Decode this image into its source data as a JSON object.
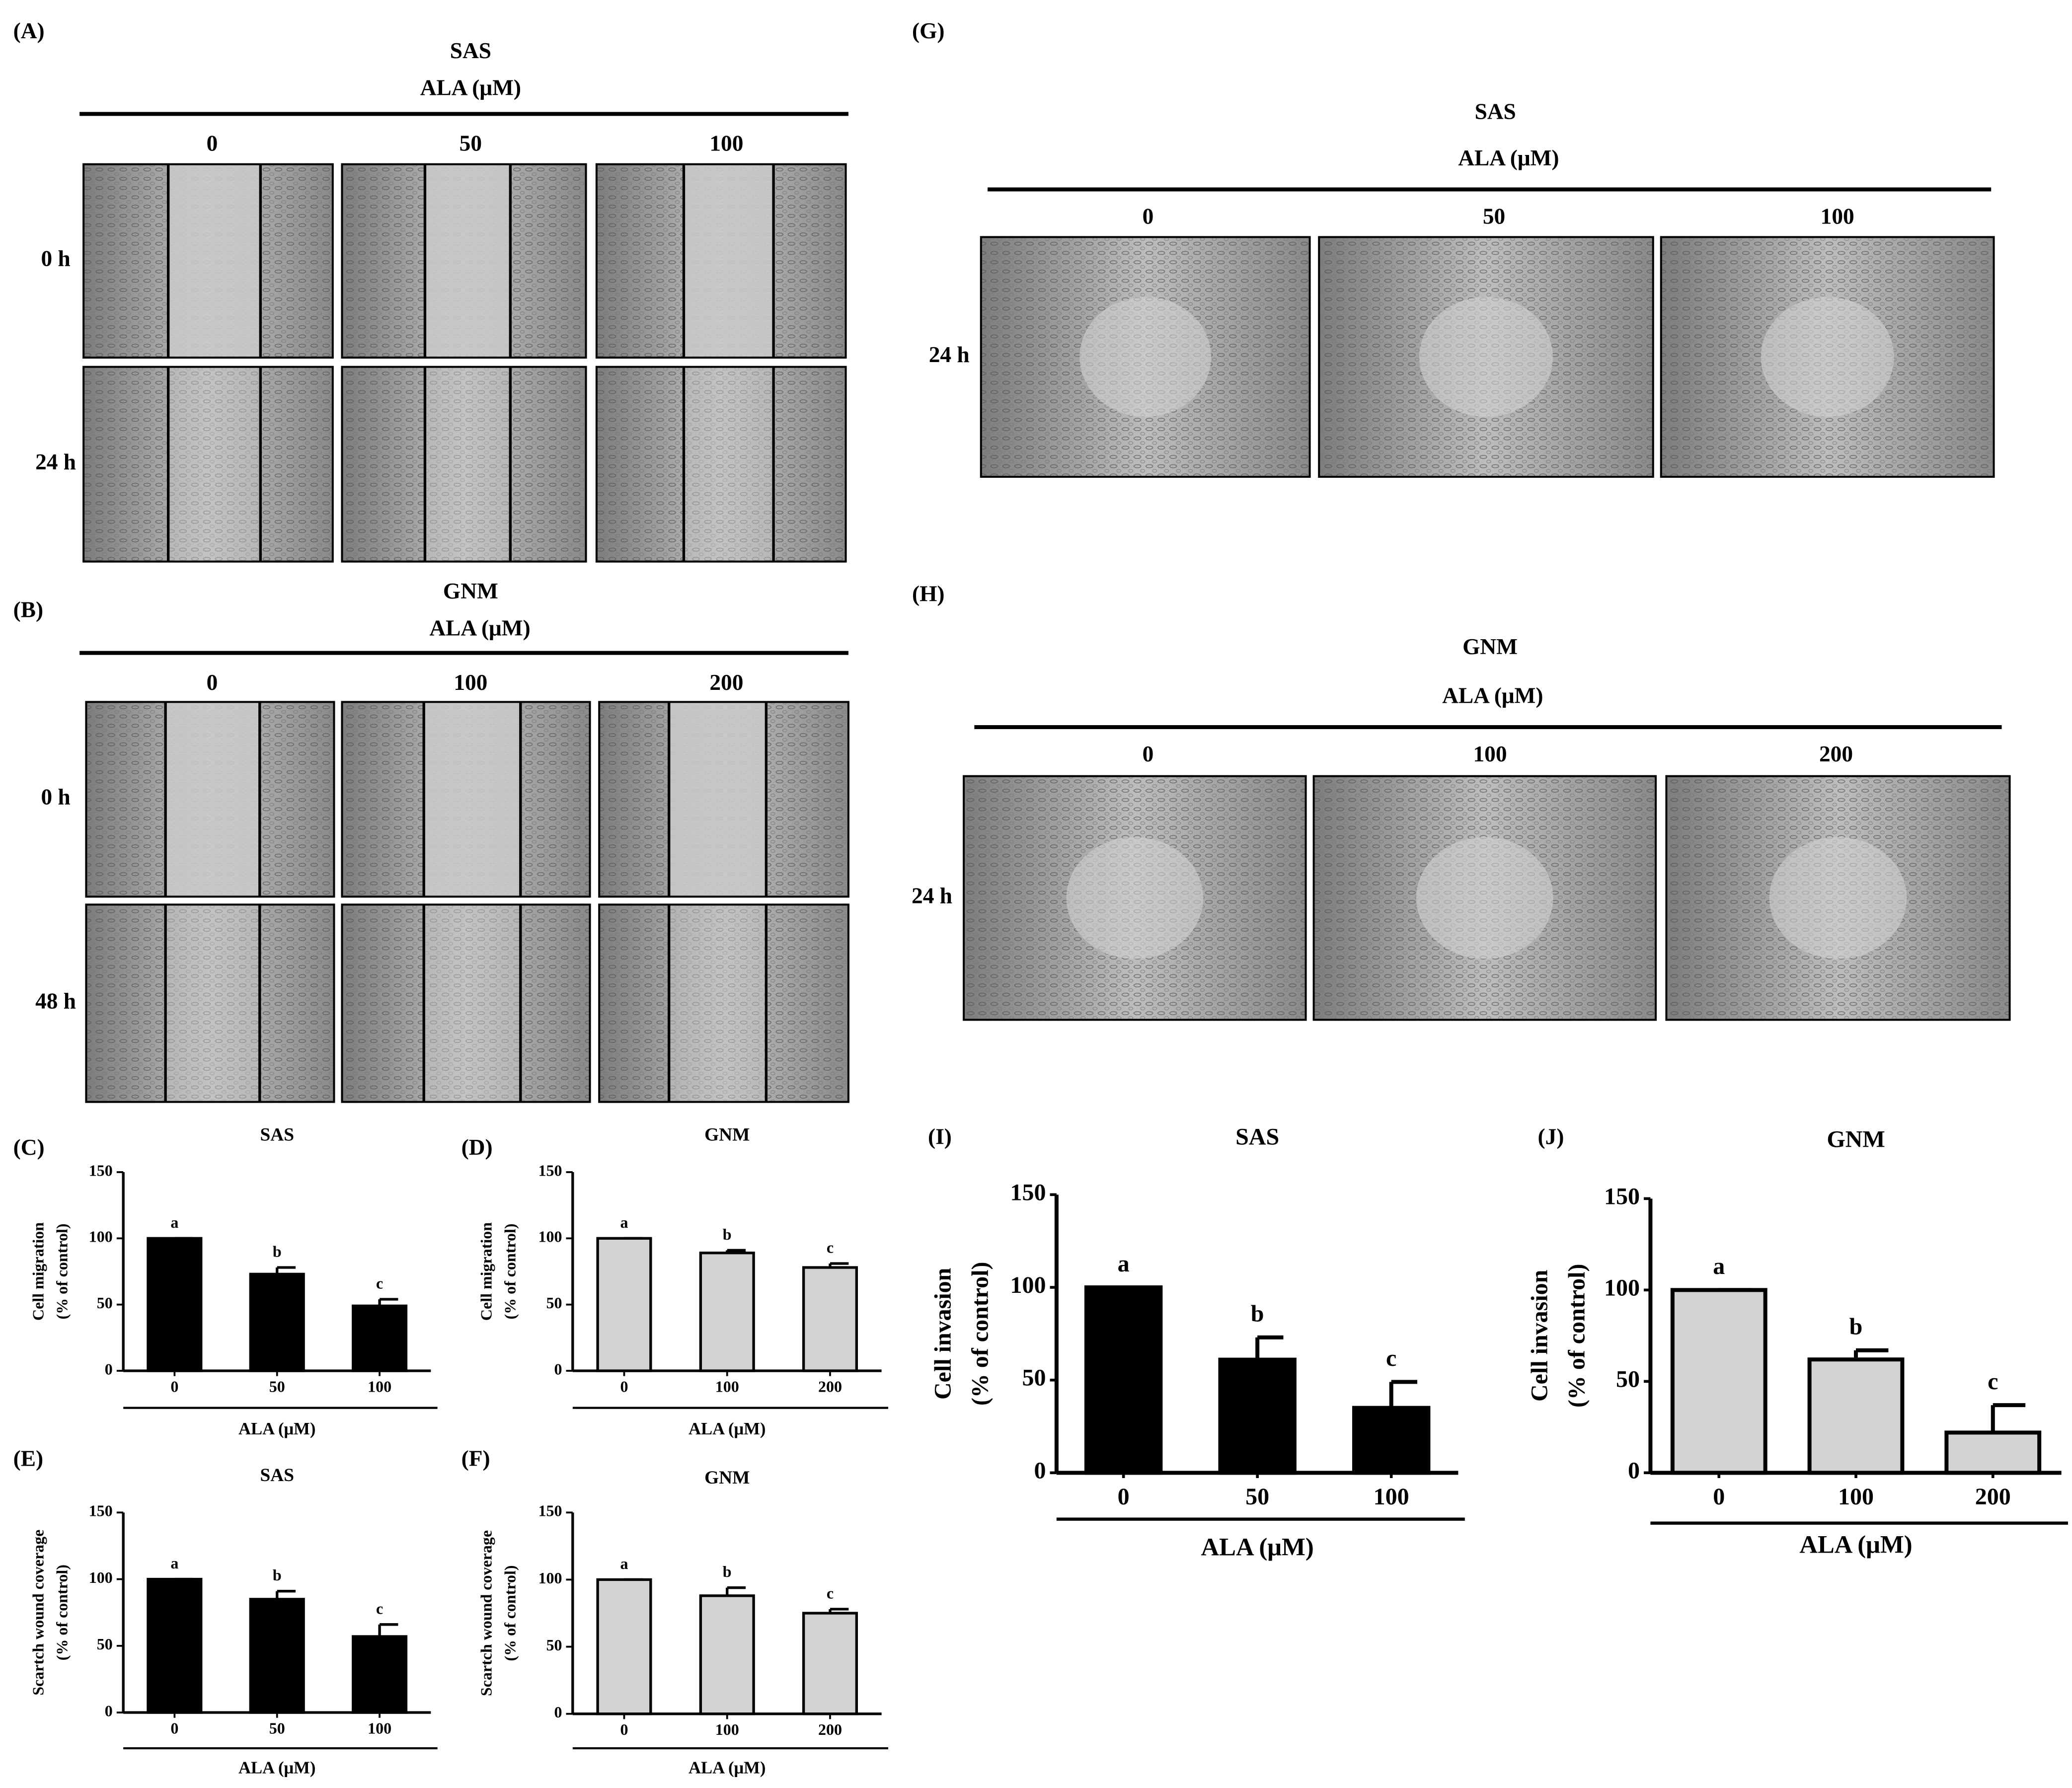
{
  "image_panels": [
    {
      "label": "(A)",
      "cell_line": "SAS",
      "treatment": "ALA (μM)",
      "columns": [
        "0",
        "50",
        "100"
      ],
      "rows": [
        "0 h",
        "24 h"
      ]
    },
    {
      "label": "(B)",
      "cell_line": "GNM",
      "treatment": "ALA (μM)",
      "columns": [
        "0",
        "100",
        "200"
      ],
      "rows": [
        "0 h",
        "48 h"
      ]
    },
    {
      "label": "(G)",
      "cell_line": "SAS",
      "treatment": "ALA (μM)",
      "columns": [
        "0",
        "50",
        "100"
      ],
      "rows": [
        "24 h"
      ]
    },
    {
      "label": "(H)",
      "cell_line": "GNM",
      "treatment": "ALA (μM)",
      "columns": [
        "0",
        "100",
        "200"
      ],
      "rows": [
        "24 h"
      ]
    }
  ],
  "chart_data": [
    {
      "type": "bar",
      "panel": "(C)",
      "title": "SAS",
      "ylabel": [
        "Cell migration",
        "(% of control)"
      ],
      "xlabel": "ALA (μM)",
      "categories": [
        "0",
        "50",
        "100"
      ],
      "values": [
        100,
        73,
        49
      ],
      "errors": [
        0,
        5,
        5
      ],
      "annotations": [
        "a",
        "b",
        "c"
      ],
      "color": "#000000",
      "ylim": [
        0,
        150
      ],
      "yticks": [
        0,
        50,
        100,
        150
      ]
    },
    {
      "type": "bar",
      "panel": "(D)",
      "title": "GNM",
      "ylabel": [
        "Cell migration",
        "(% of control)"
      ],
      "xlabel": "ALA (μM)",
      "categories": [
        "0",
        "100",
        "200"
      ],
      "values": [
        100,
        89,
        78
      ],
      "errors": [
        0,
        2,
        3
      ],
      "annotations": [
        "a",
        "b",
        "c"
      ],
      "color": "#d3d3d3",
      "ylim": [
        0,
        150
      ],
      "yticks": [
        0,
        50,
        100,
        150
      ]
    },
    {
      "type": "bar",
      "panel": "(E)",
      "title": "SAS",
      "ylabel": [
        "Scartch wound coverage",
        "(% of control)"
      ],
      "xlabel": "ALA (μM)",
      "categories": [
        "0",
        "50",
        "100"
      ],
      "values": [
        100,
        85,
        57
      ],
      "errors": [
        0,
        6,
        9
      ],
      "annotations": [
        "a",
        "b",
        "c"
      ],
      "color": "#000000",
      "ylim": [
        0,
        150
      ],
      "yticks": [
        0,
        50,
        100,
        150
      ]
    },
    {
      "type": "bar",
      "panel": "(F)",
      "title": "GNM",
      "ylabel": [
        "Scartch wound coverage",
        "(% of control)"
      ],
      "xlabel": "ALA (μM)",
      "categories": [
        "0",
        "100",
        "200"
      ],
      "values": [
        100,
        88,
        75
      ],
      "errors": [
        0,
        6,
        3
      ],
      "annotations": [
        "a",
        "b",
        "c"
      ],
      "color": "#d3d3d3",
      "ylim": [
        0,
        150
      ],
      "yticks": [
        0,
        50,
        100,
        150
      ]
    },
    {
      "type": "bar",
      "panel": "(I)",
      "title": "SAS",
      "ylabel": [
        "Cell invasion",
        "(% of control)"
      ],
      "xlabel": "ALA (μM)",
      "categories": [
        "0",
        "50",
        "100"
      ],
      "values": [
        100,
        61,
        35
      ],
      "errors": [
        0,
        12,
        14
      ],
      "annotations": [
        "a",
        "b",
        "c"
      ],
      "color": "#000000",
      "ylim": [
        0,
        150
      ],
      "yticks": [
        0,
        50,
        100,
        150
      ]
    },
    {
      "type": "bar",
      "panel": "(J)",
      "title": "GNM",
      "ylabel": [
        "Cell invasion",
        "(% of control)"
      ],
      "xlabel": "ALA (μM)",
      "categories": [
        "0",
        "100",
        "200"
      ],
      "values": [
        100,
        62,
        22
      ],
      "errors": [
        0,
        5,
        15
      ],
      "annotations": [
        "a",
        "b",
        "c"
      ],
      "color": "#d3d3d3",
      "ylim": [
        0,
        150
      ],
      "yticks": [
        0,
        50,
        100,
        150
      ]
    }
  ]
}
